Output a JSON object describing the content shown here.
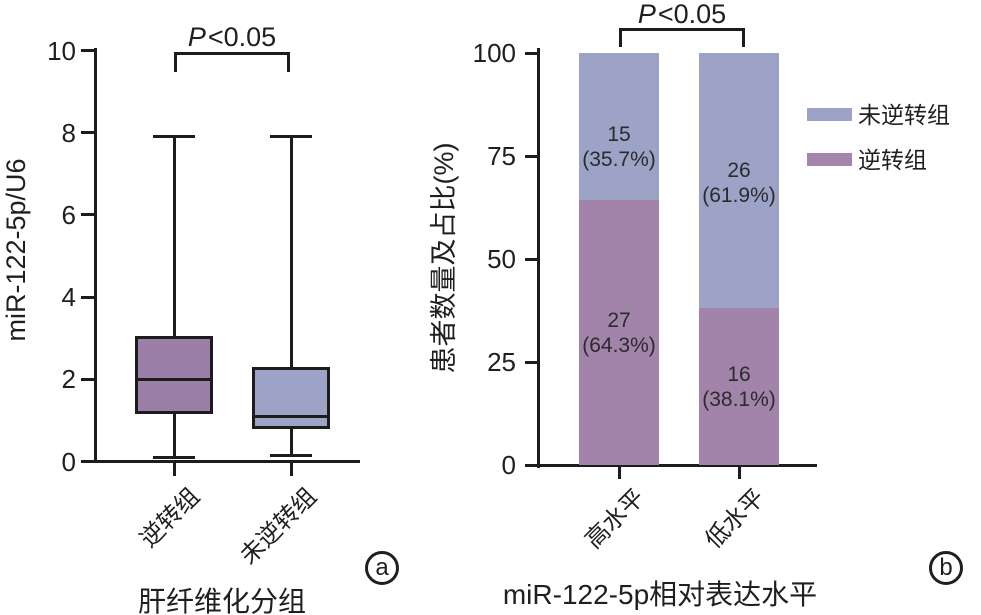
{
  "figure": {
    "panel_a_tag": "a",
    "panel_b_tag": "b"
  },
  "chart_data": [
    {
      "type": "box",
      "panel": "a",
      "ylabel": "miR-122-5p/U6",
      "xlabel": "肝纤维化分组",
      "ylim": [
        0,
        10
      ],
      "yticks": [
        0,
        2,
        4,
        6,
        8,
        10
      ],
      "categories": [
        "逆转组",
        "未逆转组"
      ],
      "annotation": {
        "p": "P",
        "rest": "<0.05"
      },
      "boxes": [
        {
          "group": "逆转组",
          "color": "#9b7fa9",
          "min": 0.1,
          "q1": 1.15,
          "median": 2.0,
          "q3": 3.05,
          "max": 7.9
        },
        {
          "group": "未逆转组",
          "color": "#9ca3c7",
          "min": 0.15,
          "q1": 0.8,
          "median": 1.1,
          "q3": 2.3,
          "max": 7.9
        }
      ]
    },
    {
      "type": "bar",
      "stacked": true,
      "panel": "b",
      "ylabel": "患者数量及占比(%)",
      "xlabel": "miR-122-5p相对表达水平",
      "ylim": [
        0,
        100
      ],
      "yticks": [
        0,
        25,
        50,
        75,
        100
      ],
      "categories": [
        "高水平",
        "低水平"
      ],
      "annotation": {
        "p": "P",
        "rest": "<0.05"
      },
      "series": [
        {
          "name": "未逆转组",
          "color": "#9ca3c7",
          "stack_position": "top",
          "counts": [
            15,
            26
          ],
          "percents": [
            35.7,
            61.9
          ],
          "pct_labels": [
            "(35.7%)",
            "(61.9%)"
          ]
        },
        {
          "name": "逆转组",
          "color": "#a283a9",
          "stack_position": "bottom",
          "counts": [
            27,
            16
          ],
          "percents": [
            64.3,
            38.1
          ],
          "pct_labels": [
            "(64.3%)",
            "(38.1%)"
          ]
        }
      ],
      "legend": [
        {
          "label": "未逆转组",
          "color": "#9ca3c7"
        },
        {
          "label": "逆转组",
          "color": "#a486ad"
        }
      ],
      "legend_position": "right"
    }
  ]
}
